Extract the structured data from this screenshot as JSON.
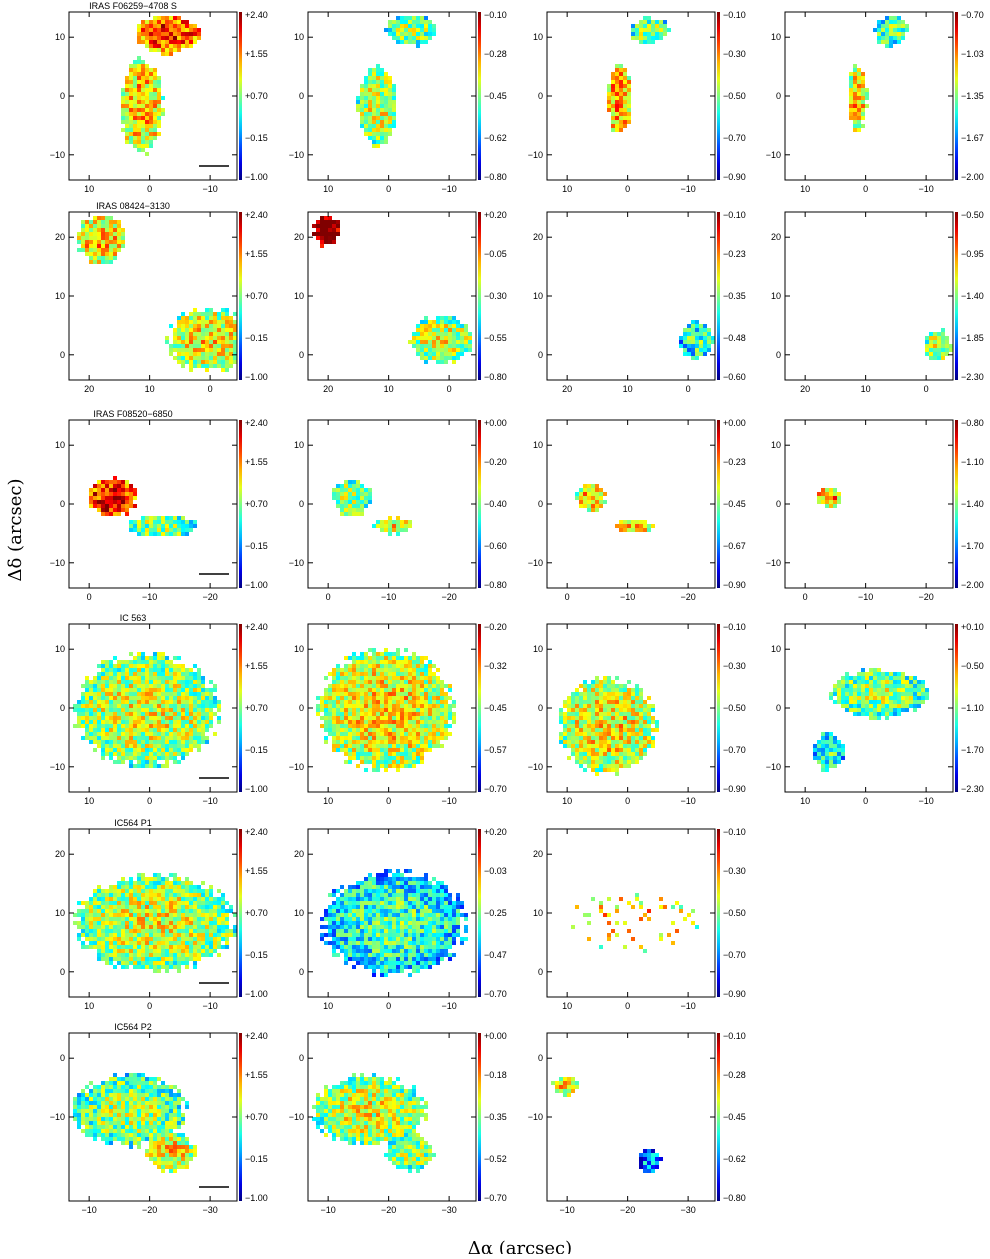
{
  "figure": {
    "ylabel": "Δδ (arcsec)",
    "xlabel": "Δα (arcsec)"
  },
  "chart_data": [
    {
      "type": "heatmap",
      "row": 0,
      "col": 0,
      "title": "IRAS F06259−4708 S",
      "xticks": [
        "10",
        "0",
        "−10"
      ],
      "yticks": [
        "10",
        "0",
        "−10"
      ],
      "cbar_ticks": [
        "+2.40",
        "+1.55",
        "+0.70",
        "−0.15",
        "−1.00"
      ],
      "scale_bar": true,
      "blobs": [
        {
          "cx": 0.58,
          "cy": 0.12,
          "rx": 0.2,
          "ry": 0.12,
          "v": 0.7
        },
        {
          "cx": 0.42,
          "cy": 0.55,
          "rx": 0.13,
          "ry": 0.3,
          "v": 0.55
        }
      ]
    },
    {
      "type": "heatmap",
      "row": 0,
      "col": 1,
      "title": "",
      "xticks": [
        "10",
        "0",
        "−10"
      ],
      "yticks": [
        "10",
        "0",
        "−10"
      ],
      "cbar_ticks": [
        "−0.10",
        "−0.28",
        "−0.45",
        "−0.62",
        "−0.80"
      ],
      "blobs": [
        {
          "cx": 0.6,
          "cy": 0.1,
          "rx": 0.15,
          "ry": 0.1,
          "v": 0.4
        },
        {
          "cx": 0.4,
          "cy": 0.55,
          "rx": 0.12,
          "ry": 0.25,
          "v": 0.45
        }
      ]
    },
    {
      "type": "heatmap",
      "row": 0,
      "col": 2,
      "title": "",
      "xticks": [
        "10",
        "0",
        "−10"
      ],
      "yticks": [
        "10",
        "0",
        "−10"
      ],
      "cbar_ticks": [
        "−0.10",
        "−0.30",
        "−0.50",
        "−0.70",
        "−0.90"
      ],
      "blobs": [
        {
          "cx": 0.6,
          "cy": 0.1,
          "rx": 0.12,
          "ry": 0.08,
          "v": 0.4
        },
        {
          "cx": 0.42,
          "cy": 0.5,
          "rx": 0.08,
          "ry": 0.22,
          "v": 0.6
        }
      ]
    },
    {
      "type": "heatmap",
      "row": 0,
      "col": 3,
      "title": "",
      "xticks": [
        "10",
        "0",
        "−10"
      ],
      "yticks": [
        "10",
        "0",
        "−10"
      ],
      "cbar_ticks": [
        "−0.70",
        "−1.03",
        "−1.35",
        "−1.67",
        "−2.00"
      ],
      "blobs": [
        {
          "cx": 0.62,
          "cy": 0.1,
          "rx": 0.1,
          "ry": 0.1,
          "v": 0.35
        },
        {
          "cx": 0.42,
          "cy": 0.5,
          "rx": 0.06,
          "ry": 0.2,
          "v": 0.55
        }
      ]
    },
    {
      "type": "heatmap",
      "row": 1,
      "col": 0,
      "title": "IRAS 08424−3130",
      "xticks": [
        "20",
        "10",
        "0"
      ],
      "yticks": [
        "20",
        "10",
        "0"
      ],
      "cbar_ticks": [
        "+2.40",
        "+1.55",
        "+0.70",
        "−0.15",
        "−1.00"
      ],
      "blobs": [
        {
          "cx": 0.18,
          "cy": 0.15,
          "rx": 0.15,
          "ry": 0.15,
          "v": 0.55
        },
        {
          "cx": 0.82,
          "cy": 0.75,
          "rx": 0.25,
          "ry": 0.2,
          "v": 0.5
        }
      ]
    },
    {
      "type": "heatmap",
      "row": 1,
      "col": 1,
      "title": "",
      "xticks": [
        "20",
        "10",
        "0"
      ],
      "yticks": [
        "20",
        "10",
        "0"
      ],
      "cbar_ticks": [
        "+0.20",
        "−0.05",
        "−0.30",
        "−0.55",
        "−0.80"
      ],
      "blobs": [
        {
          "cx": 0.1,
          "cy": 0.1,
          "rx": 0.08,
          "ry": 0.1,
          "v": 0.95
        },
        {
          "cx": 0.78,
          "cy": 0.75,
          "rx": 0.2,
          "ry": 0.15,
          "v": 0.45
        }
      ]
    },
    {
      "type": "heatmap",
      "row": 1,
      "col": 2,
      "title": "",
      "xticks": [
        "20",
        "10",
        "0"
      ],
      "yticks": [
        "20",
        "10",
        "0"
      ],
      "cbar_ticks": [
        "−0.10",
        "−0.23",
        "−0.35",
        "−0.48",
        "−0.60"
      ],
      "blobs": [
        {
          "cx": 0.88,
          "cy": 0.75,
          "rx": 0.1,
          "ry": 0.12,
          "v": 0.3
        }
      ]
    },
    {
      "type": "heatmap",
      "row": 1,
      "col": 3,
      "title": "",
      "xticks": [
        "20",
        "10",
        "0"
      ],
      "yticks": [
        "20",
        "10",
        "0"
      ],
      "cbar_ticks": [
        "−0.50",
        "−0.95",
        "−1.40",
        "−1.85",
        "−2.30"
      ],
      "blobs": [
        {
          "cx": 0.9,
          "cy": 0.78,
          "rx": 0.08,
          "ry": 0.1,
          "v": 0.45
        }
      ]
    },
    {
      "type": "heatmap",
      "row": 2,
      "col": 0,
      "title": "IRAS F08520−6850",
      "xticks": [
        "0",
        "−10",
        "−20"
      ],
      "yticks": [
        "10",
        "0",
        "−10"
      ],
      "cbar_ticks": [
        "+2.40",
        "+1.55",
        "+0.70",
        "−0.15",
        "−1.00"
      ],
      "scale_bar": true,
      "blobs": [
        {
          "cx": 0.25,
          "cy": 0.45,
          "rx": 0.15,
          "ry": 0.12,
          "v": 0.75
        },
        {
          "cx": 0.55,
          "cy": 0.62,
          "rx": 0.22,
          "ry": 0.07,
          "v": 0.4
        }
      ]
    },
    {
      "type": "heatmap",
      "row": 2,
      "col": 1,
      "title": "",
      "xticks": [
        "0",
        "−10",
        "−20"
      ],
      "yticks": [
        "10",
        "0",
        "−10"
      ],
      "cbar_ticks": [
        "+0.00",
        "−0.20",
        "−0.40",
        "−0.60",
        "−0.80"
      ],
      "blobs": [
        {
          "cx": 0.25,
          "cy": 0.45,
          "rx": 0.12,
          "ry": 0.12,
          "v": 0.4
        },
        {
          "cx": 0.5,
          "cy": 0.62,
          "rx": 0.12,
          "ry": 0.05,
          "v": 0.5
        }
      ]
    },
    {
      "type": "heatmap",
      "row": 2,
      "col": 2,
      "title": "",
      "xticks": [
        "0",
        "−10",
        "−20"
      ],
      "yticks": [
        "10",
        "0",
        "−10"
      ],
      "cbar_ticks": [
        "+0.00",
        "−0.23",
        "−0.45",
        "−0.67",
        "−0.90"
      ],
      "blobs": [
        {
          "cx": 0.25,
          "cy": 0.45,
          "rx": 0.09,
          "ry": 0.09,
          "v": 0.55
        },
        {
          "cx": 0.5,
          "cy": 0.62,
          "rx": 0.12,
          "ry": 0.04,
          "v": 0.6
        }
      ]
    },
    {
      "type": "heatmap",
      "row": 2,
      "col": 3,
      "title": "",
      "xticks": [
        "0",
        "−10",
        "−20"
      ],
      "yticks": [
        "10",
        "0",
        "−10"
      ],
      "cbar_ticks": [
        "−0.80",
        "−1.10",
        "−1.40",
        "−1.70",
        "−2.00"
      ],
      "blobs": [
        {
          "cx": 0.25,
          "cy": 0.45,
          "rx": 0.08,
          "ry": 0.06,
          "v": 0.6
        }
      ]
    },
    {
      "type": "heatmap",
      "row": 3,
      "col": 0,
      "title": "IC 563",
      "xticks": [
        "10",
        "0",
        "−10"
      ],
      "yticks": [
        "10",
        "0",
        "−10"
      ],
      "cbar_ticks": [
        "+2.40",
        "+1.55",
        "+0.70",
        "−0.15",
        "−1.00"
      ],
      "scale_bar": true,
      "blobs": [
        {
          "cx": 0.45,
          "cy": 0.5,
          "rx": 0.45,
          "ry": 0.35,
          "v": 0.45
        }
      ]
    },
    {
      "type": "heatmap",
      "row": 3,
      "col": 1,
      "title": "",
      "xticks": [
        "10",
        "0",
        "−10"
      ],
      "yticks": [
        "10",
        "0",
        "−10"
      ],
      "cbar_ticks": [
        "−0.20",
        "−0.32",
        "−0.45",
        "−0.57",
        "−0.70"
      ],
      "blobs": [
        {
          "cx": 0.45,
          "cy": 0.5,
          "rx": 0.42,
          "ry": 0.38,
          "v": 0.5
        }
      ]
    },
    {
      "type": "heatmap",
      "row": 3,
      "col": 2,
      "title": "",
      "xticks": [
        "10",
        "0",
        "−10"
      ],
      "yticks": [
        "10",
        "0",
        "−10"
      ],
      "cbar_ticks": [
        "−0.10",
        "−0.30",
        "−0.50",
        "−0.70",
        "−0.90"
      ],
      "blobs": [
        {
          "cx": 0.35,
          "cy": 0.6,
          "rx": 0.3,
          "ry": 0.3,
          "v": 0.5
        }
      ]
    },
    {
      "type": "heatmap",
      "row": 3,
      "col": 3,
      "title": "",
      "xticks": [
        "10",
        "0",
        "−10"
      ],
      "yticks": [
        "10",
        "0",
        "−10"
      ],
      "cbar_ticks": [
        "+0.10",
        "−0.50",
        "−1.10",
        "−1.70",
        "−2.30"
      ],
      "blobs": [
        {
          "cx": 0.55,
          "cy": 0.4,
          "rx": 0.3,
          "ry": 0.15,
          "v": 0.4
        },
        {
          "cx": 0.25,
          "cy": 0.75,
          "rx": 0.1,
          "ry": 0.12,
          "v": 0.3
        }
      ]
    },
    {
      "type": "heatmap",
      "row": 4,
      "col": 0,
      "title": "IC564 P1",
      "xticks": [
        "10",
        "0",
        "−10"
      ],
      "yticks": [
        "20",
        "10",
        "0"
      ],
      "cbar_ticks": [
        "+2.40",
        "+1.55",
        "+0.70",
        "−0.15",
        "−1.00"
      ],
      "scale_bar": true,
      "blobs": [
        {
          "cx": 0.5,
          "cy": 0.55,
          "rx": 0.5,
          "ry": 0.3,
          "v": 0.45
        }
      ]
    },
    {
      "type": "heatmap",
      "row": 4,
      "col": 1,
      "title": "",
      "xticks": [
        "10",
        "0",
        "−10"
      ],
      "yticks": [
        "20",
        "10",
        "0"
      ],
      "cbar_ticks": [
        "+0.20",
        "−0.03",
        "−0.25",
        "−0.47",
        "−0.70"
      ],
      "blobs": [
        {
          "cx": 0.5,
          "cy": 0.55,
          "rx": 0.45,
          "ry": 0.32,
          "v": 0.3
        }
      ]
    },
    {
      "type": "heatmap",
      "row": 4,
      "col": 2,
      "title": "",
      "xticks": [
        "10",
        "0",
        "−10"
      ],
      "yticks": [
        "20",
        "10",
        "0"
      ],
      "cbar_ticks": [
        "−0.10",
        "−0.30",
        "−0.50",
        "−0.70",
        "−0.90"
      ],
      "blobs": [
        {
          "cx": 0.5,
          "cy": 0.55,
          "rx": 0.4,
          "ry": 0.2,
          "v": 0.55
        }
      ],
      "sparse": true
    },
    {
      "type": "heatmap",
      "row": 5,
      "col": 0,
      "title": "IC564 P2",
      "xticks": [
        "−10",
        "−20",
        "−30"
      ],
      "yticks": [
        "0",
        "−10"
      ],
      "cbar_ticks": [
        "+2.40",
        "+1.55",
        "+0.70",
        "−0.15",
        "−1.00"
      ],
      "scale_bar": true,
      "blobs": [
        {
          "cx": 0.35,
          "cy": 0.45,
          "rx": 0.35,
          "ry": 0.22,
          "v": 0.4
        },
        {
          "cx": 0.6,
          "cy": 0.7,
          "rx": 0.15,
          "ry": 0.12,
          "v": 0.5
        }
      ]
    },
    {
      "type": "heatmap",
      "row": 5,
      "col": 1,
      "title": "",
      "xticks": [
        "−10",
        "−20",
        "−30"
      ],
      "yticks": [
        "0",
        "−10"
      ],
      "cbar_ticks": [
        "+0.00",
        "−0.18",
        "−0.35",
        "−0.52",
        "−0.70"
      ],
      "blobs": [
        {
          "cx": 0.35,
          "cy": 0.45,
          "rx": 0.35,
          "ry": 0.22,
          "v": 0.45
        },
        {
          "cx": 0.6,
          "cy": 0.7,
          "rx": 0.15,
          "ry": 0.12,
          "v": 0.4
        }
      ]
    },
    {
      "type": "heatmap",
      "row": 5,
      "col": 2,
      "title": "",
      "xticks": [
        "−10",
        "−20",
        "−30"
      ],
      "yticks": [
        "0",
        "−10"
      ],
      "cbar_ticks": [
        "−0.10",
        "−0.28",
        "−0.45",
        "−0.62",
        "−0.80"
      ],
      "blobs": [
        {
          "cx": 0.1,
          "cy": 0.3,
          "rx": 0.08,
          "ry": 0.06,
          "v": 0.5
        },
        {
          "cx": 0.6,
          "cy": 0.75,
          "rx": 0.07,
          "ry": 0.08,
          "v": 0.15
        }
      ]
    }
  ]
}
